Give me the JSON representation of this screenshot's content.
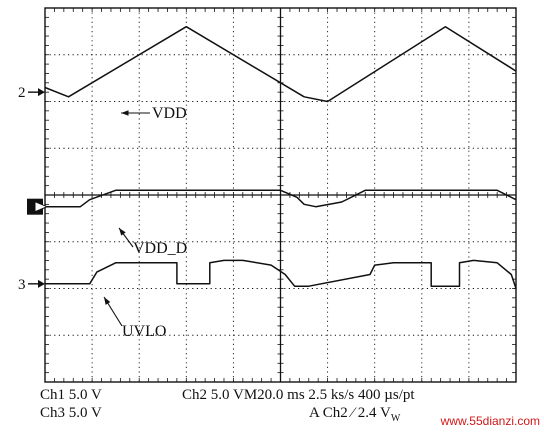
{
  "chart_data": {
    "type": "line",
    "grid": true,
    "x_divisions": 10,
    "y_divisions": 8,
    "x_unit": "div",
    "y_unit": "div",
    "series": [
      {
        "name": "VDD",
        "channel": "2",
        "color": "#111111",
        "x": [
          0,
          0.5,
          3.0,
          5.5,
          6.0,
          8.5,
          10.0
        ],
        "y": [
          6.3,
          6.1,
          7.6,
          6.1,
          6.0,
          7.6,
          6.65
        ]
      },
      {
        "name": "VDD_D",
        "color": "#111111",
        "x": [
          0,
          0.75,
          0.95,
          1.5,
          5.0,
          5.35,
          5.5,
          5.75,
          6.3,
          6.8,
          9.6,
          10.0
        ],
        "y": [
          3.75,
          3.75,
          3.9,
          4.1,
          4.1,
          3.95,
          3.8,
          3.75,
          3.85,
          4.1,
          4.1,
          3.9
        ]
      },
      {
        "name": "UVLO",
        "channel": "3",
        "color": "#111111",
        "x": [
          0,
          0.95,
          1.1,
          1.5,
          2.6,
          2.8,
          2.8,
          3.5,
          3.5,
          3.8,
          4.2,
          4.8,
          5.1,
          5.3,
          5.6,
          6.9,
          7.0,
          7.4,
          8.1,
          8.2,
          8.2,
          8.8,
          8.8,
          9.1,
          9.6,
          9.9,
          10.0
        ],
        "y": [
          2.1,
          2.1,
          2.35,
          2.55,
          2.55,
          2.55,
          2.1,
          2.1,
          2.55,
          2.6,
          2.6,
          2.5,
          2.3,
          2.05,
          2.05,
          2.3,
          2.5,
          2.55,
          2.55,
          2.55,
          2.05,
          2.05,
          2.55,
          2.6,
          2.55,
          2.3,
          2.0
        ]
      }
    ],
    "annotations": [
      {
        "text": "VDD",
        "series": "VDD"
      },
      {
        "text": "VDD_D",
        "series": "VDD_D"
      },
      {
        "text": "UVLO",
        "series": "UVLO"
      }
    ],
    "markers": [
      {
        "text": "2",
        "level": 6.2
      },
      {
        "text": "",
        "level": 3.75
      },
      {
        "text": "3",
        "level": 2.1
      }
    ]
  },
  "status": {
    "ch1": "Ch1 5.0 V",
    "ch3": "Ch3 5.0 V",
    "ch2": "Ch2  5.0 VM20.0 ms 2.5 ks/s  400 µs/pt",
    "trigger": "A Ch2 ⁄ 2.4 V",
    "trigger_sub": "W"
  },
  "watermark": "www.55dianzi.com"
}
